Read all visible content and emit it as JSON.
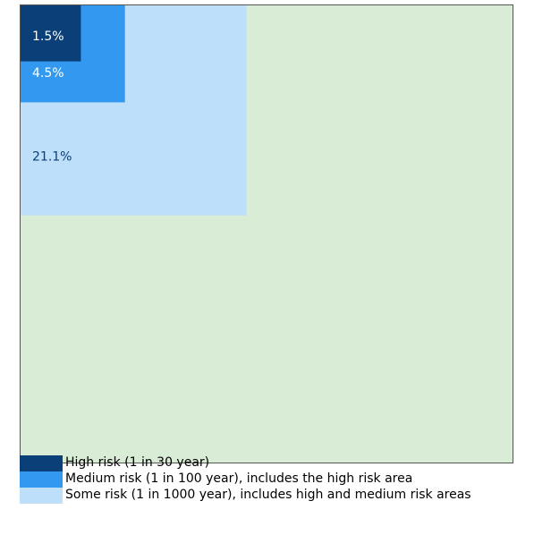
{
  "chart_data": {
    "type": "area",
    "values": [
      100,
      21.1,
      4.5,
      1.5
    ],
    "labels": [
      "",
      "21.1%",
      "4.5%",
      "1.5%"
    ],
    "colors": [
      "#d8ecd6",
      "#bddff9",
      "#3399f0",
      "#0a3f77"
    ],
    "label_colors": [
      "",
      "#0a3f77",
      "#ffffff",
      "#ffffff"
    ],
    "legend": [
      {
        "label": "High risk (1 in 30 year)",
        "color": "#0a3f77"
      },
      {
        "label": "Medium risk (1 in 100 year), includes the high risk area",
        "color": "#3399f0"
      },
      {
        "label": "Some risk (1 in 1000 year), includes high and medium risk areas",
        "color": "#bddff9"
      }
    ]
  }
}
